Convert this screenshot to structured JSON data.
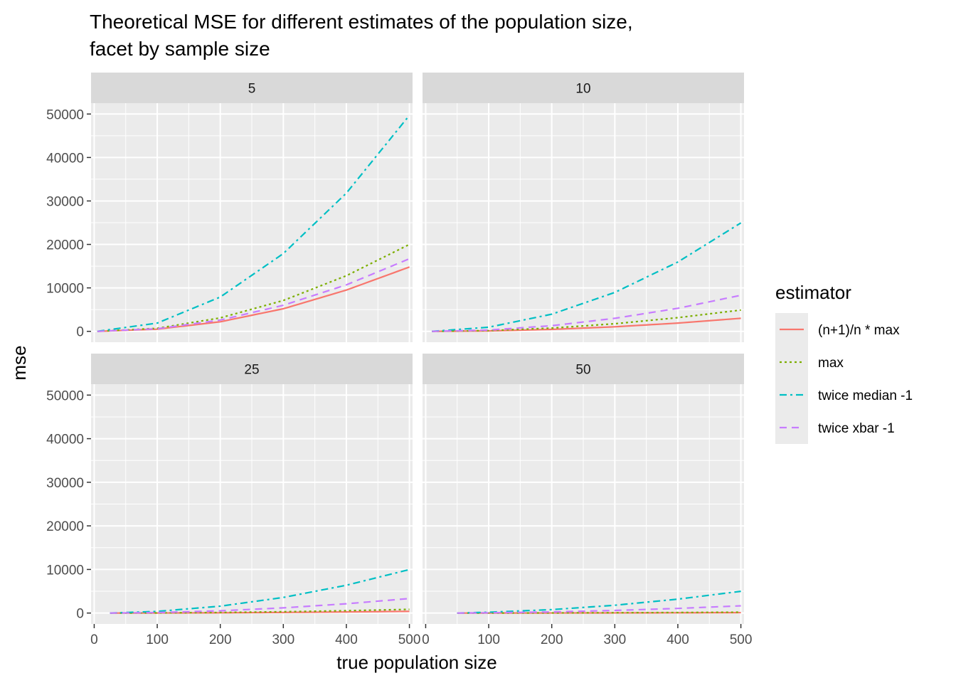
{
  "chart_data": {
    "type": "line",
    "title": "Theoretical MSE for different estimates of the population size,",
    "subtitle": "facet by sample size",
    "xlabel": "true population size",
    "ylabel": "mse",
    "xlim": [
      -5,
      505
    ],
    "ylim": [
      -2500,
      52500
    ],
    "x_ticks": [
      0,
      100,
      200,
      300,
      400,
      500
    ],
    "y_ticks": [
      0,
      10000,
      20000,
      30000,
      40000,
      50000
    ],
    "grid": true,
    "legend": {
      "title": "estimator",
      "position": "right"
    },
    "series": [
      {
        "name": "(n+1)/n * max",
        "color": "#F8766D",
        "dash": "solid"
      },
      {
        "name": "max",
        "color": "#7CAE00",
        "dash": "dotted"
      },
      {
        "name": "twice median -1",
        "color": "#00BFC4",
        "dash": "dashdot"
      },
      {
        "name": "twice xbar -1",
        "color": "#C77CFF",
        "dash": "dashed"
      }
    ],
    "facets": [
      {
        "label": "5",
        "x_start": 5,
        "curves": [
          {
            "series": "(n+1)/n * max",
            "x": [
              5,
              100,
              200,
              300,
              400,
              500
            ],
            "y": [
              0,
              500,
              2200,
              5200,
              9500,
              14800
            ]
          },
          {
            "series": "max",
            "x": [
              5,
              100,
              200,
              300,
              400,
              500
            ],
            "y": [
              0,
              700,
              3100,
              7100,
              12800,
              20000
            ]
          },
          {
            "series": "twice median -1",
            "x": [
              5,
              100,
              200,
              300,
              400,
              500
            ],
            "y": [
              0,
              1900,
              7900,
              17900,
              31800,
              49700
            ]
          },
          {
            "series": "twice xbar -1",
            "x": [
              5,
              100,
              200,
              300,
              400,
              500
            ],
            "y": [
              0,
              600,
              2600,
              6000,
              10700,
              16700
            ]
          }
        ]
      },
      {
        "label": "10",
        "x_start": 10,
        "curves": [
          {
            "series": "(n+1)/n * max",
            "x": [
              10,
              100,
              200,
              300,
              400,
              500
            ],
            "y": [
              0,
              100,
              450,
              1050,
              1900,
              3000
            ]
          },
          {
            "series": "max",
            "x": [
              10,
              100,
              200,
              300,
              400,
              500
            ],
            "y": [
              0,
              180,
              750,
              1750,
              3150,
              4900
            ]
          },
          {
            "series": "twice median -1",
            "x": [
              10,
              100,
              200,
              300,
              400,
              500
            ],
            "y": [
              0,
              950,
              3950,
              8950,
              15950,
              24950
            ]
          },
          {
            "series": "twice xbar -1",
            "x": [
              10,
              100,
              200,
              300,
              400,
              500
            ],
            "y": [
              0,
              300,
              1300,
              3000,
              5300,
              8300
            ]
          }
        ]
      },
      {
        "label": "25",
        "x_start": 25,
        "curves": [
          {
            "series": "(n+1)/n * max",
            "x": [
              25,
              100,
              200,
              300,
              400,
              500
            ],
            "y": [
              0,
              15,
              60,
              140,
              250,
              390
            ]
          },
          {
            "series": "max",
            "x": [
              25,
              100,
              200,
              300,
              400,
              500
            ],
            "y": [
              0,
              30,
              130,
              300,
              540,
              850
            ]
          },
          {
            "series": "twice median -1",
            "x": [
              25,
              100,
              200,
              300,
              400,
              500
            ],
            "y": [
              0,
              380,
              1580,
              3580,
              6380,
              9980
            ]
          },
          {
            "series": "twice xbar -1",
            "x": [
              25,
              100,
              200,
              300,
              400,
              500
            ],
            "y": [
              0,
              120,
              520,
              1190,
              2130,
              3330
            ]
          }
        ]
      },
      {
        "label": "50",
        "x_start": 50,
        "curves": [
          {
            "series": "(n+1)/n * max",
            "x": [
              50,
              100,
              200,
              300,
              400,
              500
            ],
            "y": [
              0,
              4,
              16,
              36,
              64,
              100
            ]
          },
          {
            "series": "max",
            "x": [
              50,
              100,
              200,
              300,
              400,
              500
            ],
            "y": [
              0,
              8,
              31,
              70,
              125,
              195
            ]
          },
          {
            "series": "twice median -1",
            "x": [
              50,
              100,
              200,
              300,
              400,
              500
            ],
            "y": [
              0,
              190,
              790,
              1790,
              3190,
              4990
            ]
          },
          {
            "series": "twice xbar -1",
            "x": [
              50,
              100,
              200,
              300,
              400,
              500
            ],
            "y": [
              0,
              60,
              260,
              600,
              1060,
              1660
            ]
          }
        ]
      }
    ]
  }
}
